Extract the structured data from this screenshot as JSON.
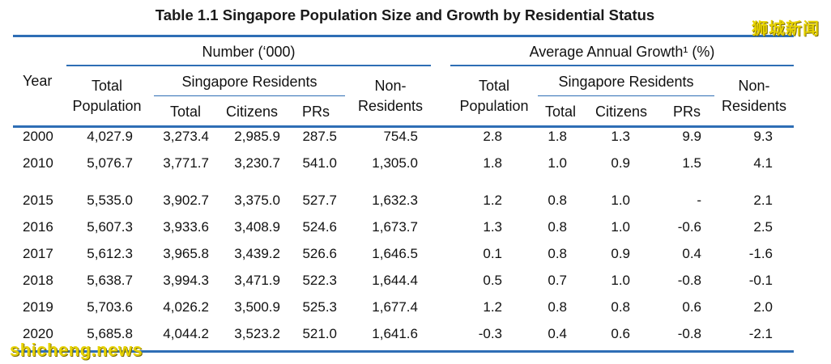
{
  "title": "Table 1.1  Singapore Population Size and Growth by Residential Status",
  "watermark_top": "狮城新闻",
  "watermark_bottom": "shicheng.news",
  "header": {
    "year": "Year",
    "number_group": "Number (‘000)",
    "growth_group": "Average Annual Growth¹ (%)",
    "total_population_line1": "Total",
    "total_population_line2": "Population",
    "singapore_residents": "Singapore Residents",
    "non_residents_line1": "Non-",
    "non_residents_line2": "Residents",
    "total": "Total",
    "citizens": "Citizens",
    "prs": "PRs"
  },
  "rows": [
    [
      "2000",
      "4,027.9",
      "3,273.4",
      "2,985.9",
      "287.5",
      "754.5",
      "2.8",
      "1.8",
      "1.3",
      "9.9",
      "9.3"
    ],
    [
      "2010",
      "5,076.7",
      "3,771.7",
      "3,230.7",
      "541.0",
      "1,305.0",
      "1.8",
      "1.0",
      "0.9",
      "1.5",
      "4.1"
    ],
    [
      "2015",
      "5,535.0",
      "3,902.7",
      "3,375.0",
      "527.7",
      "1,632.3",
      "1.2",
      "0.8",
      "1.0",
      "-",
      "2.1"
    ],
    [
      "2016",
      "5,607.3",
      "3,933.6",
      "3,408.9",
      "524.6",
      "1,673.7",
      "1.3",
      "0.8",
      "1.0",
      "-0.6",
      "2.5"
    ],
    [
      "2017",
      "5,612.3",
      "3,965.8",
      "3,439.2",
      "526.6",
      "1,646.5",
      "0.1",
      "0.8",
      "0.9",
      "0.4",
      "-1.6"
    ],
    [
      "2018",
      "5,638.7",
      "3,994.3",
      "3,471.9",
      "522.3",
      "1,644.4",
      "0.5",
      "0.7",
      "1.0",
      "-0.8",
      "-0.1"
    ],
    [
      "2019",
      "5,703.6",
      "4,026.2",
      "3,500.9",
      "525.3",
      "1,677.4",
      "1.2",
      "0.8",
      "0.8",
      "0.6",
      "2.0"
    ],
    [
      "2020",
      "5,685.8",
      "4,044.2",
      "3,523.2",
      "521.0",
      "1,641.6",
      "-0.3",
      "0.4",
      "0.6",
      "-0.8",
      "-2.1"
    ]
  ],
  "colors": {
    "rule": "#2e6eb5",
    "watermark": "#e6d200"
  }
}
